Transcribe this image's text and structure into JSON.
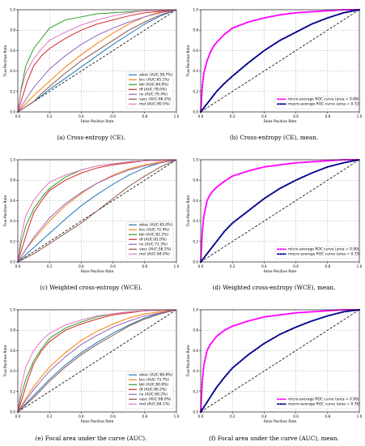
{
  "chart_data": [
    {
      "type": "line",
      "panel_id": "a",
      "caption": "(a) Cross-entropy (CE).",
      "xlabel": "False Positive Rate",
      "ylabel": "True Positive Rate",
      "xlim": [
        0,
        1
      ],
      "ylim": [
        0,
        1
      ],
      "xticks": [
        "0.0",
        "0.2",
        "0.4",
        "0.6",
        "0.8",
        "1.0"
      ],
      "yticks": [
        "0.0",
        "0.2",
        "0.4",
        "0.6",
        "0.8",
        "1.0"
      ],
      "grid": true,
      "legend_position": "lower-right",
      "diagonal": true,
      "series": [
        {
          "name": "akiec (AUC:58.7%)",
          "color": "#1f77b4",
          "x": [
            0,
            0.1,
            0.2,
            0.3,
            0.4,
            0.5,
            0.6,
            0.7,
            0.8,
            0.9,
            1.0
          ],
          "y": [
            0,
            0.1,
            0.22,
            0.33,
            0.44,
            0.55,
            0.66,
            0.76,
            0.86,
            0.94,
            1.0
          ]
        },
        {
          "name": "bcc (AUC:65.1%)",
          "color": "#ff7f0e",
          "x": [
            0,
            0.05,
            0.1,
            0.2,
            0.3,
            0.4,
            0.5,
            0.6,
            0.7,
            0.8,
            0.9,
            1.0
          ],
          "y": [
            0,
            0.08,
            0.16,
            0.3,
            0.44,
            0.56,
            0.67,
            0.77,
            0.86,
            0.93,
            0.98,
            1.0
          ]
        },
        {
          "name": "bkl (AUC:84.9%)",
          "color": "#2ca02c",
          "x": [
            0,
            0.02,
            0.05,
            0.1,
            0.15,
            0.2,
            0.3,
            0.4,
            0.5,
            0.6,
            0.7,
            0.8,
            1.0
          ],
          "y": [
            0,
            0.22,
            0.45,
            0.62,
            0.72,
            0.82,
            0.9,
            0.93,
            0.96,
            0.97,
            0.98,
            0.99,
            1.0
          ]
        },
        {
          "name": "df (AUC:78.0%)",
          "color": "#d62728",
          "x": [
            0,
            0.03,
            0.06,
            0.1,
            0.15,
            0.2,
            0.3,
            0.4,
            0.5,
            0.6,
            0.7,
            0.8,
            1.0
          ],
          "y": [
            0,
            0.15,
            0.3,
            0.45,
            0.55,
            0.62,
            0.72,
            0.8,
            0.86,
            0.9,
            0.94,
            0.97,
            1.0
          ]
        },
        {
          "name": "nv (AUC:70.4%)",
          "color": "#9467bd",
          "x": [
            0,
            0.05,
            0.1,
            0.2,
            0.3,
            0.4,
            0.5,
            0.6,
            0.7,
            0.8,
            0.9,
            1.0
          ],
          "y": [
            0,
            0.12,
            0.24,
            0.42,
            0.55,
            0.66,
            0.75,
            0.82,
            0.88,
            0.93,
            0.97,
            1.0
          ]
        },
        {
          "name": "vasc (AUC:66.2%)",
          "color": "#8c564b",
          "x": [
            0,
            0.1,
            0.15,
            0.2,
            0.3,
            0.4,
            0.5,
            0.6,
            0.7,
            0.8,
            0.9,
            1.0
          ],
          "y": [
            0,
            0.1,
            0.18,
            0.25,
            0.38,
            0.5,
            0.6,
            0.7,
            0.8,
            0.88,
            0.95,
            1.0
          ]
        },
        {
          "name": "mel (AUC:80.5%)",
          "color": "#e377c2",
          "x": [
            0,
            0.02,
            0.05,
            0.1,
            0.15,
            0.2,
            0.3,
            0.4,
            0.5,
            0.6,
            0.7,
            0.8,
            1.0
          ],
          "y": [
            0,
            0.2,
            0.38,
            0.52,
            0.62,
            0.7,
            0.78,
            0.85,
            0.9,
            0.94,
            0.97,
            0.99,
            1.0
          ]
        }
      ]
    },
    {
      "type": "scatter",
      "panel_id": "b",
      "caption": "(b) Cross-entropy (CE), mean.",
      "xlabel": "False Positive Rate",
      "ylabel": "True Positive Rate",
      "xlim": [
        0,
        1
      ],
      "ylim": [
        0,
        1
      ],
      "xticks": [
        "0.0",
        "0.2",
        "0.4",
        "0.6",
        "0.8",
        "1.0"
      ],
      "yticks": [
        "0.0",
        "0.2",
        "0.4",
        "0.6",
        "0.8",
        "1.0"
      ],
      "grid": true,
      "legend_position": "lower-right",
      "diagonal": true,
      "series": [
        {
          "name": "micro-average ROC curve (area = 0.89)",
          "color": "#ff00ff",
          "x": [
            0,
            0.01,
            0.02,
            0.04,
            0.06,
            0.08,
            0.1,
            0.15,
            0.2,
            0.3,
            0.4,
            0.5,
            0.6,
            0.7,
            0.8,
            0.9,
            1.0
          ],
          "y": [
            0,
            0.25,
            0.38,
            0.5,
            0.58,
            0.64,
            0.68,
            0.76,
            0.82,
            0.88,
            0.92,
            0.95,
            0.97,
            0.98,
            0.99,
            1.0,
            1.0
          ]
        },
        {
          "name": "macro-average ROC curve (area = 0.72)",
          "color": "#00008b",
          "x": [
            0,
            0.05,
            0.1,
            0.15,
            0.2,
            0.3,
            0.4,
            0.5,
            0.6,
            0.7,
            0.8,
            0.9,
            1.0
          ],
          "y": [
            0,
            0.1,
            0.2,
            0.28,
            0.35,
            0.48,
            0.6,
            0.7,
            0.78,
            0.86,
            0.92,
            0.97,
            1.0
          ]
        }
      ]
    },
    {
      "type": "line",
      "panel_id": "c",
      "caption": "(c) Weighted cross-entropy (WCE).",
      "xlabel": "False Positive Rate",
      "ylabel": "True Positive Rate",
      "xlim": [
        0,
        1
      ],
      "ylim": [
        0,
        1
      ],
      "xticks": [
        "0.0",
        "0.2",
        "0.4",
        "0.6",
        "0.8",
        "1.0"
      ],
      "yticks": [
        "0.0",
        "0.2",
        "0.4",
        "0.6",
        "0.8",
        "1.0"
      ],
      "grid": true,
      "legend_position": "lower-right",
      "diagonal": true,
      "series": [
        {
          "name": "akiec (AUC:65.0%)",
          "color": "#1f77b4",
          "x": [
            0,
            0.1,
            0.2,
            0.3,
            0.4,
            0.5,
            0.6,
            0.7,
            0.8,
            0.9,
            1.0
          ],
          "y": [
            0,
            0.14,
            0.28,
            0.42,
            0.55,
            0.66,
            0.76,
            0.85,
            0.92,
            0.97,
            1.0
          ]
        },
        {
          "name": "bcc (AUC:72.4%)",
          "color": "#ff7f0e",
          "x": [
            0,
            0.05,
            0.1,
            0.2,
            0.3,
            0.4,
            0.5,
            0.6,
            0.7,
            0.8,
            0.9,
            1.0
          ],
          "y": [
            0,
            0.12,
            0.22,
            0.4,
            0.55,
            0.67,
            0.77,
            0.85,
            0.91,
            0.95,
            0.98,
            1.0
          ]
        },
        {
          "name": "bkl (AUC:82.2%)",
          "color": "#2ca02c",
          "x": [
            0,
            0.02,
            0.05,
            0.1,
            0.15,
            0.2,
            0.3,
            0.4,
            0.5,
            0.6,
            0.7,
            0.8,
            1.0
          ],
          "y": [
            0,
            0.18,
            0.35,
            0.52,
            0.63,
            0.72,
            0.83,
            0.9,
            0.94,
            0.96,
            0.98,
            0.99,
            1.0
          ]
        },
        {
          "name": "df (AUC:81.0%)",
          "color": "#d62728",
          "x": [
            0,
            0.03,
            0.06,
            0.1,
            0.15,
            0.2,
            0.3,
            0.4,
            0.5,
            0.6,
            0.7,
            0.8,
            1.0
          ],
          "y": [
            0,
            0.15,
            0.3,
            0.48,
            0.6,
            0.7,
            0.8,
            0.87,
            0.92,
            0.95,
            0.97,
            0.99,
            1.0
          ]
        },
        {
          "name": "nv (AUC:71.3%)",
          "color": "#9467bd",
          "x": [
            0,
            0.05,
            0.1,
            0.2,
            0.3,
            0.4,
            0.5,
            0.6,
            0.7,
            0.8,
            0.9,
            1.0
          ],
          "y": [
            0,
            0.12,
            0.24,
            0.43,
            0.57,
            0.68,
            0.77,
            0.84,
            0.9,
            0.94,
            0.97,
            1.0
          ]
        },
        {
          "name": "vasc (AUC:58.2%)",
          "color": "#8c564b",
          "x": [
            0,
            0.1,
            0.2,
            0.3,
            0.4,
            0.5,
            0.6,
            0.7,
            0.8,
            0.9,
            1.0
          ],
          "y": [
            0,
            0.08,
            0.18,
            0.28,
            0.38,
            0.5,
            0.62,
            0.74,
            0.84,
            0.93,
            1.0
          ]
        },
        {
          "name": "mel (AUC:84.0%)",
          "color": "#e377c2",
          "x": [
            0,
            0.02,
            0.05,
            0.1,
            0.15,
            0.2,
            0.3,
            0.4,
            0.5,
            0.6,
            0.7,
            0.8,
            1.0
          ],
          "y": [
            0,
            0.25,
            0.45,
            0.6,
            0.7,
            0.78,
            0.85,
            0.9,
            0.94,
            0.96,
            0.98,
            0.99,
            1.0
          ]
        }
      ]
    },
    {
      "type": "scatter",
      "panel_id": "d",
      "caption": "(d) Weighted cross-entropy (WCE), mean.",
      "xlabel": "False Positive Rate",
      "ylabel": "True Positive Rate",
      "xlim": [
        0,
        1
      ],
      "ylim": [
        0,
        1
      ],
      "xticks": [
        "0.0",
        "0.2",
        "0.4",
        "0.6",
        "0.8",
        "1.0"
      ],
      "yticks": [
        "0.0",
        "0.2",
        "0.4",
        "0.6",
        "0.8",
        "1.0"
      ],
      "grid": true,
      "legend_position": "lower-right",
      "diagonal": true,
      "series": [
        {
          "name": "micro-average ROC curve (area = 0.90)",
          "color": "#ff00ff",
          "x": [
            0,
            0.01,
            0.02,
            0.04,
            0.06,
            0.08,
            0.1,
            0.15,
            0.2,
            0.3,
            0.4,
            0.5,
            0.6,
            0.7,
            0.8,
            0.9,
            1.0
          ],
          "y": [
            0,
            0.3,
            0.45,
            0.6,
            0.66,
            0.7,
            0.73,
            0.79,
            0.84,
            0.89,
            0.93,
            0.95,
            0.97,
            0.98,
            0.99,
            1.0,
            1.0
          ]
        },
        {
          "name": "macro-average ROC curve (area = 0.73)",
          "color": "#00008b",
          "x": [
            0,
            0.05,
            0.1,
            0.15,
            0.2,
            0.3,
            0.4,
            0.5,
            0.6,
            0.7,
            0.8,
            0.9,
            1.0
          ],
          "y": [
            0,
            0.1,
            0.2,
            0.3,
            0.38,
            0.5,
            0.62,
            0.72,
            0.8,
            0.87,
            0.93,
            0.97,
            1.0
          ]
        }
      ]
    },
    {
      "type": "line",
      "panel_id": "e",
      "caption": "(e) Focal area under the curve (AUC).",
      "xlabel": "False Positive Rate",
      "ylabel": "True Positive Rate",
      "xlim": [
        0,
        1
      ],
      "ylim": [
        0,
        1
      ],
      "xticks": [
        "0.0",
        "0.2",
        "0.4",
        "0.6",
        "0.8",
        "1.0"
      ],
      "yticks": [
        "0.0",
        "0.2",
        "0.4",
        "0.6",
        "0.8",
        "1.0"
      ],
      "grid": true,
      "legend_position": "lower-right",
      "diagonal": true,
      "series": [
        {
          "name": "akiec (AUC:66.8%)",
          "color": "#1f77b4",
          "x": [
            0,
            0.1,
            0.2,
            0.3,
            0.4,
            0.5,
            0.6,
            0.7,
            0.8,
            0.9,
            1.0
          ],
          "y": [
            0,
            0.16,
            0.32,
            0.46,
            0.58,
            0.68,
            0.77,
            0.85,
            0.92,
            0.97,
            1.0
          ]
        },
        {
          "name": "bcc (AUC:73.7%)",
          "color": "#ff7f0e",
          "x": [
            0,
            0.05,
            0.1,
            0.2,
            0.3,
            0.4,
            0.5,
            0.6,
            0.7,
            0.8,
            0.9,
            1.0
          ],
          "y": [
            0,
            0.13,
            0.25,
            0.44,
            0.58,
            0.7,
            0.79,
            0.86,
            0.92,
            0.96,
            0.98,
            1.0
          ]
        },
        {
          "name": "bkl (AUC:80.8%)",
          "color": "#2ca02c",
          "x": [
            0,
            0.02,
            0.05,
            0.1,
            0.15,
            0.2,
            0.3,
            0.4,
            0.5,
            0.6,
            0.7,
            0.8,
            1.0
          ],
          "y": [
            0,
            0.15,
            0.32,
            0.5,
            0.62,
            0.72,
            0.82,
            0.88,
            0.93,
            0.96,
            0.98,
            0.99,
            1.0
          ]
        },
        {
          "name": "df (AUC:80.2%)",
          "color": "#d62728",
          "x": [
            0,
            0.03,
            0.06,
            0.1,
            0.15,
            0.2,
            0.3,
            0.4,
            0.5,
            0.6,
            0.7,
            0.8,
            1.0
          ],
          "y": [
            0,
            0.14,
            0.3,
            0.47,
            0.6,
            0.69,
            0.8,
            0.86,
            0.91,
            0.95,
            0.97,
            0.99,
            1.0
          ]
        },
        {
          "name": "nv (AUC:69.2%)",
          "color": "#9467bd",
          "x": [
            0,
            0.05,
            0.1,
            0.2,
            0.3,
            0.4,
            0.5,
            0.6,
            0.7,
            0.8,
            0.9,
            1.0
          ],
          "y": [
            0,
            0.11,
            0.22,
            0.4,
            0.54,
            0.66,
            0.75,
            0.83,
            0.89,
            0.94,
            0.97,
            1.0
          ]
        },
        {
          "name": "vasc (AUC:68.0%)",
          "color": "#8c564b",
          "x": [
            0,
            0.1,
            0.15,
            0.2,
            0.3,
            0.4,
            0.5,
            0.6,
            0.7,
            0.8,
            0.9,
            1.0
          ],
          "y": [
            0,
            0.14,
            0.22,
            0.3,
            0.44,
            0.56,
            0.66,
            0.75,
            0.84,
            0.91,
            0.96,
            1.0
          ]
        },
        {
          "name": "mel (AUC:84.1%)",
          "color": "#e377c2",
          "x": [
            0,
            0.02,
            0.05,
            0.1,
            0.15,
            0.2,
            0.3,
            0.4,
            0.5,
            0.6,
            0.7,
            0.8,
            1.0
          ],
          "y": [
            0,
            0.24,
            0.44,
            0.6,
            0.7,
            0.77,
            0.85,
            0.9,
            0.94,
            0.96,
            0.98,
            0.99,
            1.0
          ]
        }
      ]
    },
    {
      "type": "scatter",
      "panel_id": "f",
      "caption": "(f) Focal area under the curve (AUC), mean.",
      "xlabel": "False Positive Rate",
      "ylabel": "True Positive Rate",
      "xlim": [
        0,
        1
      ],
      "ylim": [
        0,
        1
      ],
      "xticks": [
        "0.0",
        "0.2",
        "0.4",
        "0.6",
        "0.8",
        "1.0"
      ],
      "yticks": [
        "0.0",
        "0.2",
        "0.4",
        "0.6",
        "0.8",
        "1.0"
      ],
      "grid": true,
      "legend_position": "lower-right",
      "diagonal": true,
      "series": [
        {
          "name": "micro-average ROC curve (area = 0.90)",
          "color": "#ff00ff",
          "x": [
            0,
            0.01,
            0.02,
            0.04,
            0.06,
            0.08,
            0.1,
            0.15,
            0.2,
            0.3,
            0.4,
            0.5,
            0.6,
            0.7,
            0.8,
            0.9,
            1.0
          ],
          "y": [
            0,
            0.3,
            0.46,
            0.6,
            0.66,
            0.7,
            0.74,
            0.8,
            0.84,
            0.89,
            0.93,
            0.95,
            0.97,
            0.98,
            0.99,
            1.0,
            1.0
          ]
        },
        {
          "name": "macro-average ROC curve (area = 0.76)",
          "color": "#00008b",
          "x": [
            0,
            0.05,
            0.1,
            0.15,
            0.2,
            0.3,
            0.4,
            0.5,
            0.6,
            0.7,
            0.8,
            0.9,
            1.0
          ],
          "y": [
            0,
            0.12,
            0.24,
            0.34,
            0.43,
            0.56,
            0.67,
            0.76,
            0.83,
            0.89,
            0.94,
            0.98,
            1.0
          ]
        }
      ]
    }
  ]
}
